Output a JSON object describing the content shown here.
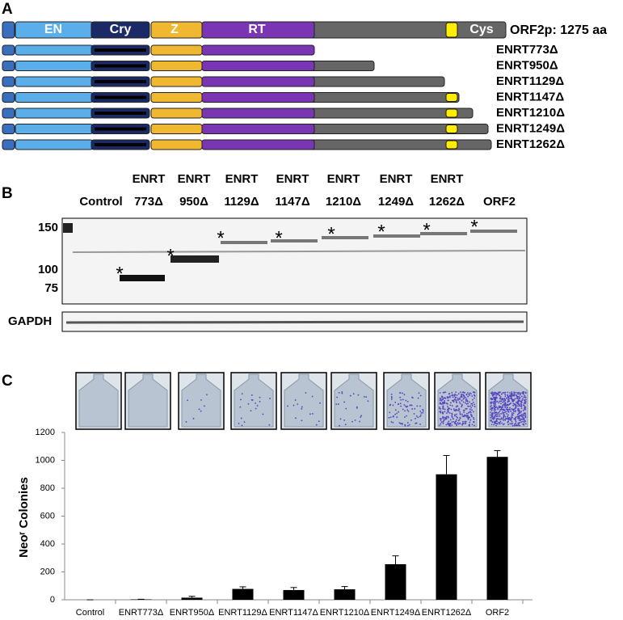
{
  "panel_a": {
    "label": "A",
    "domains": [
      "EN",
      "Cry",
      "Z",
      "RT",
      "Cys"
    ],
    "full_length": "ORF2p: 1275 aa",
    "constructs": [
      "ENRT773Δ",
      "ENRT950Δ",
      "ENRT1129Δ",
      "ENRT1147Δ",
      "ENRT1210Δ",
      "ENRT1249Δ",
      "ENRT1262Δ"
    ]
  },
  "panel_b": {
    "label": "B",
    "lanes": [
      [
        "Control"
      ],
      [
        "ENRT",
        "773Δ"
      ],
      [
        "ENRT",
        "950Δ"
      ],
      [
        "ENRT",
        "1129Δ"
      ],
      [
        "ENRT",
        "1147Δ"
      ],
      [
        "ENRT",
        "1210Δ"
      ],
      [
        "ENRT",
        "1249Δ"
      ],
      [
        "ENRT",
        "1262Δ"
      ],
      [
        "ORF2"
      ]
    ],
    "markers": [
      150,
      100,
      75
    ],
    "asterisk": "*",
    "loading_control": "GAPDH"
  },
  "panel_c": {
    "label": "C"
  },
  "chart_data": {
    "type": "bar",
    "y_label": "Neoʳ Colonies",
    "categories": [
      "Control",
      "ENRT773Δ",
      "ENRT950Δ",
      "ENRT1129Δ",
      "ENRT1147Δ",
      "ENRT1210Δ",
      "ENRT1249Δ",
      "ENRT1262Δ",
      "ORF2"
    ],
    "values": [
      0,
      3,
      15,
      78,
      70,
      75,
      255,
      900,
      1025
    ],
    "errors": [
      0,
      1,
      10,
      15,
      18,
      20,
      60,
      135,
      45
    ],
    "color": "#000000",
    "ylim": [
      0,
      1200
    ],
    "yticks": [
      0,
      200,
      400,
      600,
      800,
      1000,
      1200
    ],
    "grid": false
  }
}
